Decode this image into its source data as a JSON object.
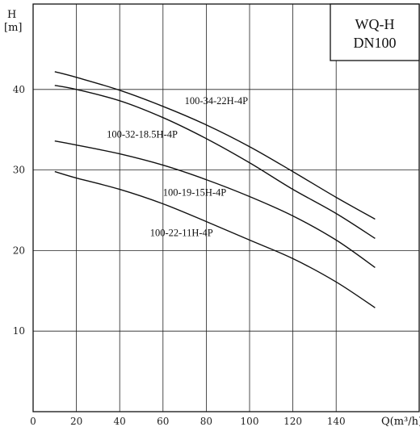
{
  "chart_data": {
    "type": "line",
    "title_box": [
      "WQ-H",
      "DN100"
    ],
    "ylabel": [
      "H",
      "[m]"
    ],
    "xlabel": "Q(m³/h)",
    "xlim": [
      0,
      160
    ],
    "ylim": [
      0,
      50
    ],
    "x_ticks": [
      "0",
      "20",
      "40",
      "60",
      "80",
      "100",
      "120",
      "140"
    ],
    "y_ticks": [
      "10",
      "20",
      "30",
      "40"
    ],
    "grid": true,
    "series": [
      {
        "name": "100-34-22H-4P",
        "x": [
          10,
          20,
          40,
          60,
          80,
          100,
          120,
          140,
          158
        ],
        "y": [
          42.2,
          41.5,
          39.9,
          37.9,
          35.6,
          32.9,
          29.8,
          26.6,
          23.9
        ]
      },
      {
        "name": "100-32-18.5H-4P",
        "x": [
          10,
          20,
          40,
          60,
          80,
          100,
          120,
          140,
          158
        ],
        "y": [
          40.5,
          40.0,
          38.6,
          36.5,
          33.9,
          30.9,
          27.6,
          24.6,
          21.5
        ]
      },
      {
        "name": "100-19-15H-4P",
        "x": [
          10,
          20,
          40,
          60,
          80,
          100,
          120,
          140,
          158
        ],
        "y": [
          33.6,
          33.1,
          32.0,
          30.6,
          28.8,
          26.7,
          24.3,
          21.3,
          17.9
        ]
      },
      {
        "name": "100-22-11H-4P",
        "x": [
          10,
          20,
          40,
          60,
          80,
          100,
          120,
          140,
          158
        ],
        "y": [
          29.8,
          29.0,
          27.6,
          25.8,
          23.6,
          21.3,
          19.0,
          16.1,
          12.9
        ]
      }
    ]
  }
}
